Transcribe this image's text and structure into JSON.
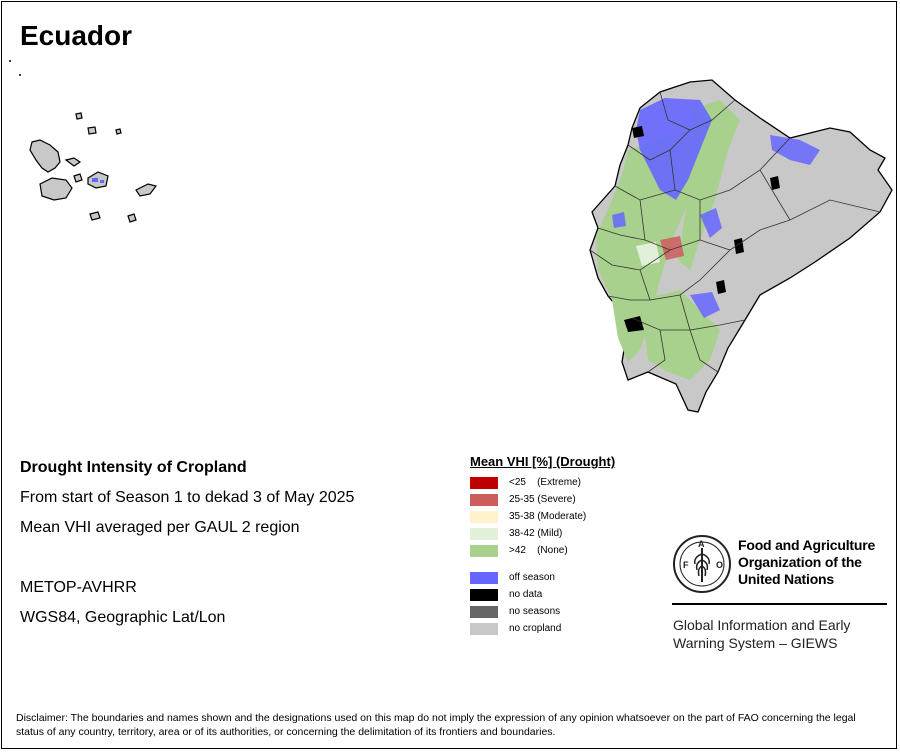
{
  "title": "Ecuador",
  "info": {
    "heading": "Drought Intensity of Cropland",
    "period": "From start of Season 1 to dekad 3 of May 2025",
    "method": "Mean VHI averaged per GAUL 2 region",
    "sensor": "METOP-AVHRR",
    "projection": "WGS84, Geographic Lat/Lon"
  },
  "legend": {
    "title": "Mean VHI [%] (Drought)",
    "classes": [
      {
        "label": "<25    (Extreme)",
        "color": "#c00000"
      },
      {
        "label": "25-35 (Severe)",
        "color": "#cd5c5c"
      },
      {
        "label": "35-38 (Moderate)",
        "color": "#fff2cc"
      },
      {
        "label": "38-42 (Mild)",
        "color": "#e2f0d9"
      },
      {
        "label": ">42    (None)",
        "color": "#a9d18e"
      }
    ],
    "other": [
      {
        "label": "off season",
        "color": "#6666ff"
      },
      {
        "label": "no data",
        "color": "#000000"
      },
      {
        "label": "no seasons",
        "color": "#666666"
      },
      {
        "label": "no cropland",
        "color": "#c8c8c8"
      }
    ]
  },
  "organization": {
    "name_line1": "Food and Agriculture",
    "name_line2": "Organization of the",
    "name_line3": "United Nations",
    "system_line1": "Global Information and Early",
    "system_line2": "Warning System – GIEWS",
    "emblem_text": "FAO"
  },
  "disclaimer": "Disclaimer: The boundaries and names shown and the designations used on this map do not imply the expression of any opinion whatsoever on the part of FAO concerning the legal status of any country, territory, area or of its authorities, or concerning the delimitation of its frontiers and boundaries."
}
